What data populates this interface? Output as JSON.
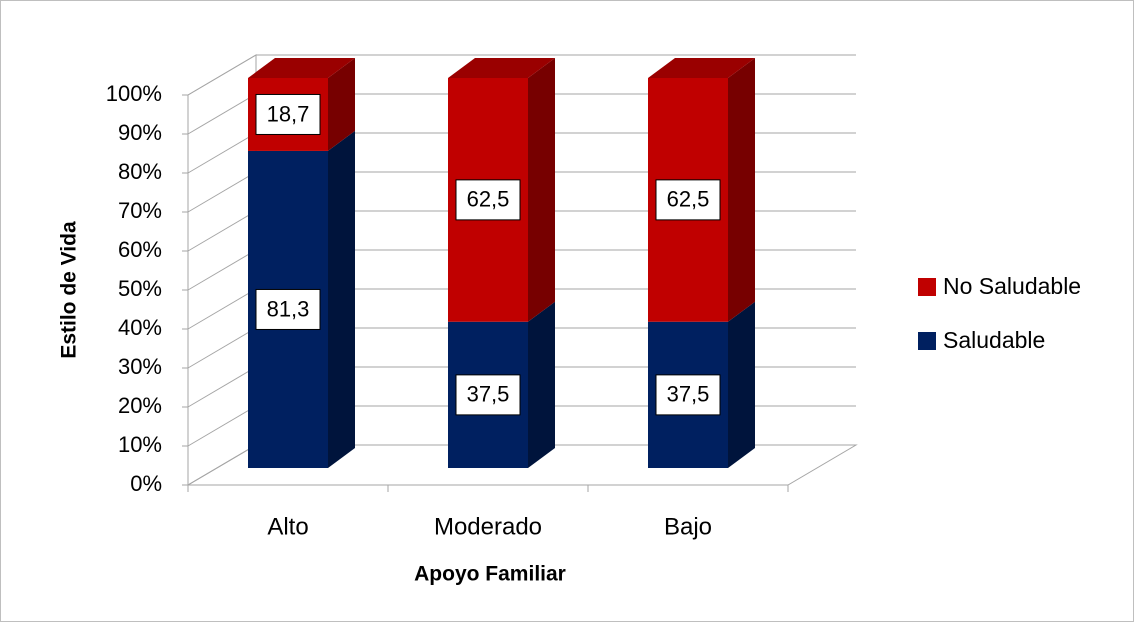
{
  "chart_data": {
    "type": "bar3d_stacked_percent",
    "xlabel": "Apoyo Familiar",
    "ylabel": "Estilo de Vida",
    "categories": [
      "Alto",
      "Moderado",
      "Bajo"
    ],
    "series": [
      {
        "name": "Saludable",
        "color": "#002060",
        "values": [
          81.3,
          37.5,
          37.5
        ],
        "value_labels": [
          "81,3",
          "37,5",
          "37,5"
        ]
      },
      {
        "name": "No Saludable",
        "color": "#c00000",
        "values": [
          18.7,
          62.5,
          62.5
        ],
        "value_labels": [
          "18,7",
          "62,5",
          "62,5"
        ]
      }
    ],
    "ylim": [
      0,
      100
    ],
    "yticks": [
      {
        "value": 0,
        "label": "0%"
      },
      {
        "value": 10,
        "label": "10%"
      },
      {
        "value": 20,
        "label": "20%"
      },
      {
        "value": 30,
        "label": "30%"
      },
      {
        "value": 40,
        "label": "40%"
      },
      {
        "value": 50,
        "label": "50%"
      },
      {
        "value": 60,
        "label": "60%"
      },
      {
        "value": 70,
        "label": "70%"
      },
      {
        "value": 80,
        "label": "80%"
      },
      {
        "value": 90,
        "label": "90%"
      },
      {
        "value": 100,
        "label": "100%"
      }
    ],
    "grid": true,
    "legend": "right"
  }
}
